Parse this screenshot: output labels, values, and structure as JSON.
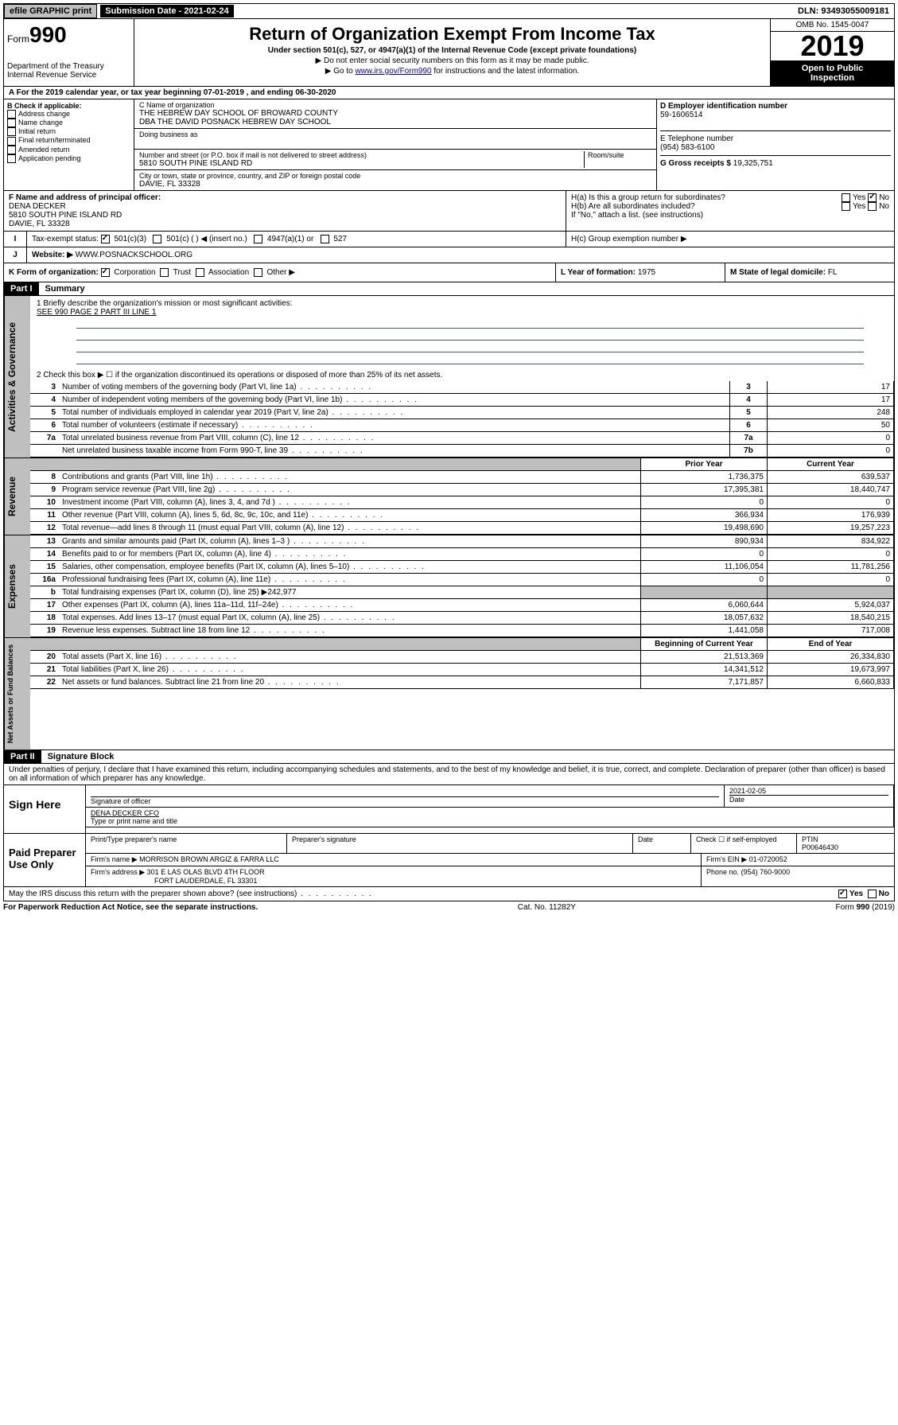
{
  "topbar": {
    "efile": "efile GRAPHIC print",
    "submission": "Submission Date - 2021-02-24",
    "dln": "DLN: 93493055009181"
  },
  "header": {
    "form_prefix": "Form",
    "form_number": "990",
    "dept": "Department of the Treasury",
    "irs": "Internal Revenue Service",
    "title": "Return of Organization Exempt From Income Tax",
    "subtitle": "Under section 501(c), 527, or 4947(a)(1) of the Internal Revenue Code (except private foundations)",
    "note1": "▶ Do not enter social security numbers on this form as it may be made public.",
    "note2_pre": "▶ Go to ",
    "note2_link": "www.irs.gov/Form990",
    "note2_post": " for instructions and the latest information.",
    "omb": "OMB No. 1545-0047",
    "year": "2019",
    "open1": "Open to Public",
    "open2": "Inspection"
  },
  "period": "A For the 2019 calendar year, or tax year beginning 07-01-2019    , and ending 06-30-2020",
  "sectionB": {
    "label": "B Check if applicable:",
    "items": [
      "Address change",
      "Name change",
      "Initial return",
      "Final return/terminated",
      "Amended return",
      "Application pending"
    ]
  },
  "sectionC": {
    "name_label": "C Name of organization",
    "name1": "THE HEBREW DAY SCHOOL OF BROWARD COUNTY",
    "name2": "DBA THE DAVID POSNACK HEBREW DAY SCHOOL",
    "dba_label": "Doing business as",
    "addr_label": "Number and street (or P.O. box if mail is not delivered to street address)",
    "room_label": "Room/suite",
    "addr": "5810 SOUTH PINE ISLAND RD",
    "city_label": "City or town, state or province, country, and ZIP or foreign postal code",
    "city": "DAVIE, FL  33328"
  },
  "sectionD": {
    "label": "D Employer identification number",
    "value": "59-1606514"
  },
  "sectionE": {
    "label": "E Telephone number",
    "value": "(954) 583-6100"
  },
  "sectionG": {
    "label": "G Gross receipts $",
    "value": "19,325,751"
  },
  "sectionF": {
    "label": "F  Name and address of principal officer:",
    "name": "DENA DECKER",
    "addr1": "5810 SOUTH PINE ISLAND RD",
    "addr2": "DAVIE, FL  33328"
  },
  "sectionH": {
    "a": "H(a)  Is this a group return for subordinates?",
    "b": "H(b)  Are all subordinates included?",
    "b_note": "If \"No,\" attach a list. (see instructions)",
    "c": "H(c)  Group exemption number ▶",
    "yes": "Yes",
    "no": "No"
  },
  "sectionI": {
    "label": "Tax-exempt status:",
    "opts": [
      "501(c)(3)",
      "501(c) (  ) ◀ (insert no.)",
      "4947(a)(1) or",
      "527"
    ]
  },
  "sectionJ": {
    "label": "Website: ▶",
    "value": "WWW.POSNACKSCHOOL.ORG"
  },
  "sectionK": {
    "label": "K Form of organization:",
    "opts": [
      "Corporation",
      "Trust",
      "Association",
      "Other ▶"
    ]
  },
  "sectionL": {
    "label": "L Year of formation:",
    "value": "1975"
  },
  "sectionM": {
    "label": "M State of legal domicile:",
    "value": "FL"
  },
  "part1": {
    "header": "Part I",
    "title": "Summary",
    "line1_label": "1  Briefly describe the organization's mission or most significant activities:",
    "line1_value": "SEE 990 PAGE 2 PART III LINE 1",
    "line2": "2   Check this box ▶ ☐  if the organization discontinued its operations or disposed of more than 25% of its net assets.",
    "vtabs": {
      "ag": "Activities & Governance",
      "rev": "Revenue",
      "exp": "Expenses",
      "nab": "Net Assets or Fund Balances"
    },
    "col_headers": {
      "prior": "Prior Year",
      "current": "Current Year",
      "boy": "Beginning of Current Year",
      "eoy": "End of Year"
    },
    "governance": [
      {
        "n": "3",
        "d": "Number of voting members of the governing body (Part VI, line 1a)",
        "c": "3",
        "v": "17"
      },
      {
        "n": "4",
        "d": "Number of independent voting members of the governing body (Part VI, line 1b)",
        "c": "4",
        "v": "17"
      },
      {
        "n": "5",
        "d": "Total number of individuals employed in calendar year 2019 (Part V, line 2a)",
        "c": "5",
        "v": "248"
      },
      {
        "n": "6",
        "d": "Total number of volunteers (estimate if necessary)",
        "c": "6",
        "v": "50"
      },
      {
        "n": "7a",
        "d": "Total unrelated business revenue from Part VIII, column (C), line 12",
        "c": "7a",
        "v": "0"
      },
      {
        "n": "",
        "d": "Net unrelated business taxable income from Form 990-T, line 39",
        "c": "7b",
        "v": "0"
      }
    ],
    "revenue": [
      {
        "n": "8",
        "d": "Contributions and grants (Part VIII, line 1h)",
        "p": "1,736,375",
        "c": "639,537"
      },
      {
        "n": "9",
        "d": "Program service revenue (Part VIII, line 2g)",
        "p": "17,395,381",
        "c": "18,440,747"
      },
      {
        "n": "10",
        "d": "Investment income (Part VIII, column (A), lines 3, 4, and 7d )",
        "p": "0",
        "c": "0"
      },
      {
        "n": "11",
        "d": "Other revenue (Part VIII, column (A), lines 5, 6d, 8c, 9c, 10c, and 11e)",
        "p": "366,934",
        "c": "176,939"
      },
      {
        "n": "12",
        "d": "Total revenue—add lines 8 through 11 (must equal Part VIII, column (A), line 12)",
        "p": "19,498,690",
        "c": "19,257,223"
      }
    ],
    "expenses": [
      {
        "n": "13",
        "d": "Grants and similar amounts paid (Part IX, column (A), lines 1–3 )",
        "p": "890,934",
        "c": "834,922"
      },
      {
        "n": "14",
        "d": "Benefits paid to or for members (Part IX, column (A), line 4)",
        "p": "0",
        "c": "0"
      },
      {
        "n": "15",
        "d": "Salaries, other compensation, employee benefits (Part IX, column (A), lines 5–10)",
        "p": "11,106,054",
        "c": "11,781,256"
      },
      {
        "n": "16a",
        "d": "Professional fundraising fees (Part IX, column (A), line 11e)",
        "p": "0",
        "c": "0"
      },
      {
        "n": "b",
        "d": "Total fundraising expenses (Part IX, column (D), line 25) ▶242,977",
        "p": "",
        "c": "",
        "shade": true
      },
      {
        "n": "17",
        "d": "Other expenses (Part IX, column (A), lines 11a–11d, 11f–24e)",
        "p": "6,060,644",
        "c": "5,924,037"
      },
      {
        "n": "18",
        "d": "Total expenses. Add lines 13–17 (must equal Part IX, column (A), line 25)",
        "p": "18,057,632",
        "c": "18,540,215"
      },
      {
        "n": "19",
        "d": "Revenue less expenses. Subtract line 18 from line 12",
        "p": "1,441,058",
        "c": "717,008"
      }
    ],
    "netassets": [
      {
        "n": "20",
        "d": "Total assets (Part X, line 16)",
        "p": "21,513,369",
        "c": "26,334,830"
      },
      {
        "n": "21",
        "d": "Total liabilities (Part X, line 26)",
        "p": "14,341,512",
        "c": "19,673,997"
      },
      {
        "n": "22",
        "d": "Net assets or fund balances. Subtract line 21 from line 20",
        "p": "7,171,857",
        "c": "6,660,833"
      }
    ]
  },
  "part2": {
    "header": "Part II",
    "title": "Signature Block",
    "perjury": "Under penalties of perjury, I declare that I have examined this return, including accompanying schedules and statements, and to the best of my knowledge and belief, it is true, correct, and complete. Declaration of preparer (other than officer) is based on all information of which preparer has any knowledge.",
    "sign_here": "Sign Here",
    "sig_officer": "Signature of officer",
    "sig_date": "2021-02-05",
    "date_label": "Date",
    "officer_name": "DENA DECKER CFO",
    "type_name": "Type or print name and title",
    "paid": "Paid Preparer Use Only",
    "prep_name_label": "Print/Type preparer's name",
    "prep_sig_label": "Preparer's signature",
    "check_self": "Check ☐ if self-employed",
    "ptin_label": "PTIN",
    "ptin": "P00646430",
    "firm_name_label": "Firm's name    ▶",
    "firm_name": "MORRISON BROWN ARGIZ & FARRA LLC",
    "firm_ein_label": "Firm's EIN ▶",
    "firm_ein": "01-0720052",
    "firm_addr_label": "Firm's address ▶",
    "firm_addr1": "301 E LAS OLAS BLVD 4TH FLOOR",
    "firm_addr2": "FORT LAUDERDALE, FL  33301",
    "phone_label": "Phone no.",
    "phone": "(954) 760-9000",
    "discuss": "May the IRS discuss this return with the preparer shown above? (see instructions)",
    "yes": "Yes",
    "no": "No"
  },
  "footer": {
    "pra": "For Paperwork Reduction Act Notice, see the separate instructions.",
    "cat": "Cat. No. 11282Y",
    "form": "Form 990 (2019)"
  }
}
